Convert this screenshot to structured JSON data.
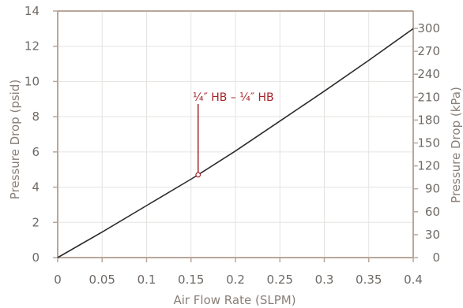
{
  "chart_data": {
    "type": "line",
    "title": "",
    "xlabel": "Air Flow Rate (SLPM)",
    "ylabel_left": "Pressure Drop (psid)",
    "ylabel_right": "Pressure Drop (kPa)",
    "xlim": [
      0,
      0.4
    ],
    "ylim_left": [
      0,
      14
    ],
    "ylim_right": [
      0,
      300
    ],
    "xticks": [
      "0",
      "0.05",
      "0.1",
      "0.15",
      "0.2",
      "0.25",
      "0.3",
      "0.35",
      "0.4"
    ],
    "yticks_left": [
      "0",
      "2",
      "4",
      "6",
      "8",
      "10",
      "12",
      "14"
    ],
    "yticks_right": [
      "0",
      "30",
      "60",
      "90",
      "120",
      "150",
      "180",
      "210",
      "240",
      "270",
      "300"
    ],
    "grid": true,
    "series": [
      {
        "name": "",
        "x": [
          0,
          0.05,
          0.1,
          0.15,
          0.158,
          0.2,
          0.25,
          0.3,
          0.35,
          0.4
        ],
        "y": [
          0,
          1.45,
          2.95,
          4.45,
          4.7,
          6.05,
          7.75,
          9.45,
          11.2,
          13.0
        ]
      }
    ],
    "annotation": {
      "text": "¼″ HB – ¼″ HB",
      "x": 0.158,
      "y": 4.7
    },
    "colors": {
      "line": "#2b2b2b",
      "grid": "#e6e3e0",
      "axis": "#b9a79b",
      "annotation": "#a5262c"
    }
  }
}
